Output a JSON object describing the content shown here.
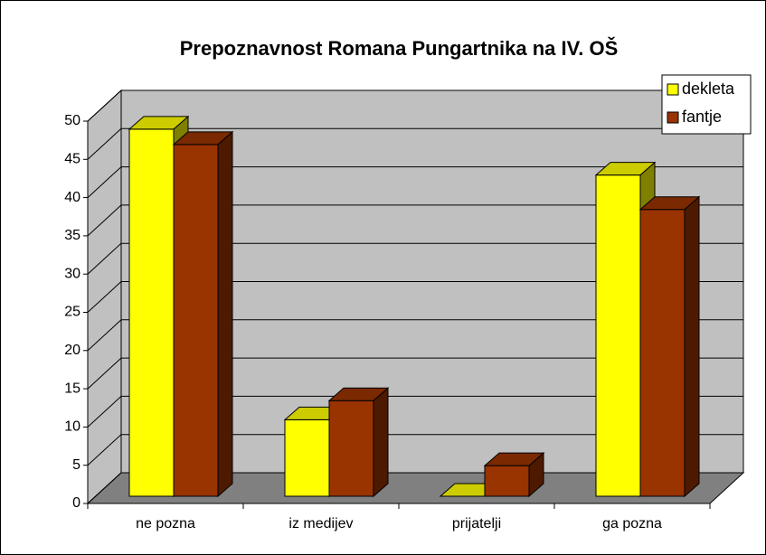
{
  "chart_data": {
    "type": "bar3d",
    "title": "Prepoznavnost Romana Pungartnika na IV. OŠ",
    "categories": [
      "ne pozna",
      "iz medijev",
      "prijatelji",
      "ga pozna"
    ],
    "series": [
      {
        "name": "dekleta",
        "color": "#ffff00",
        "values": [
          48,
          10,
          0,
          42
        ]
      },
      {
        "name": "fantje",
        "color": "#993300",
        "values": [
          46,
          12.5,
          4,
          37.5
        ]
      }
    ],
    "ylim": [
      0,
      50
    ],
    "yticks": [
      0,
      5,
      10,
      15,
      20,
      25,
      30,
      35,
      40,
      45,
      50
    ],
    "grid": true,
    "legend": "top-right"
  }
}
